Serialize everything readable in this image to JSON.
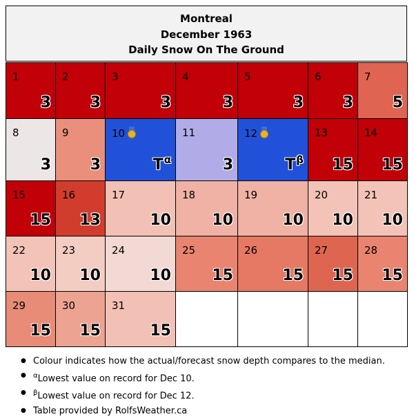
{
  "chart_data": {
    "type": "table",
    "title_lines": [
      "Montreal",
      "December 1963",
      "Daily Snow On The Ground"
    ],
    "month_start_day_of_week": 0,
    "days": [
      {
        "day": 1,
        "value": "3",
        "color": "#c10008"
      },
      {
        "day": 2,
        "value": "3",
        "color": "#c10008"
      },
      {
        "day": 3,
        "value": "3",
        "color": "#c10008"
      },
      {
        "day": 4,
        "value": "3",
        "color": "#c10008"
      },
      {
        "day": 5,
        "value": "3",
        "color": "#c10008"
      },
      {
        "day": 6,
        "value": "3",
        "color": "#c10008"
      },
      {
        "day": 7,
        "value": "5",
        "color": "#df6451"
      },
      {
        "day": 8,
        "value": "3",
        "color": "#ece6e6"
      },
      {
        "day": 9,
        "value": "3",
        "color": "#e98f7b"
      },
      {
        "day": 10,
        "value": "T",
        "note": "α",
        "medal": true,
        "color": "#2051d8"
      },
      {
        "day": 11,
        "value": "3",
        "color": "#b1ace8"
      },
      {
        "day": 12,
        "value": "T",
        "note": "β",
        "medal": true,
        "color": "#2051d8"
      },
      {
        "day": 13,
        "value": "15",
        "color": "#c10008"
      },
      {
        "day": 14,
        "value": "15",
        "color": "#c10008"
      },
      {
        "day": 15,
        "value": "15",
        "color": "#c10008"
      },
      {
        "day": 16,
        "value": "13",
        "color": "#d13c2c"
      },
      {
        "day": 17,
        "value": "10",
        "color": "#f2c0b4"
      },
      {
        "day": 18,
        "value": "10",
        "color": "#efb2a4"
      },
      {
        "day": 19,
        "value": "10",
        "color": "#efb2a4"
      },
      {
        "day": 20,
        "value": "10",
        "color": "#f3c3b8"
      },
      {
        "day": 21,
        "value": "10",
        "color": "#f3c3b8"
      },
      {
        "day": 22,
        "value": "10",
        "color": "#f3c3b8"
      },
      {
        "day": 23,
        "value": "10",
        "color": "#f3ccc2"
      },
      {
        "day": 24,
        "value": "10",
        "color": "#f3d9d3"
      },
      {
        "day": 25,
        "value": "15",
        "color": "#e8846f"
      },
      {
        "day": 26,
        "value": "15",
        "color": "#e57963"
      },
      {
        "day": 27,
        "value": "15",
        "color": "#de654f"
      },
      {
        "day": 28,
        "value": "15",
        "color": "#e8846f"
      },
      {
        "day": 29,
        "value": "15",
        "color": "#e88b77"
      },
      {
        "day": 30,
        "value": "15",
        "color": "#eda392"
      },
      {
        "day": 31,
        "value": "15",
        "color": "#f2c0b4"
      }
    ]
  },
  "notes": {
    "colour": "Colour indicates how the actual/forecast snow depth compares to the median.",
    "alpha_mark": "α",
    "alpha_text": "Lowest value on record for Dec 10.",
    "beta_mark": "β",
    "beta_text": "Lowest value on record for Dec 12.",
    "provided": "Table provided by RolfsWeather.ca"
  }
}
